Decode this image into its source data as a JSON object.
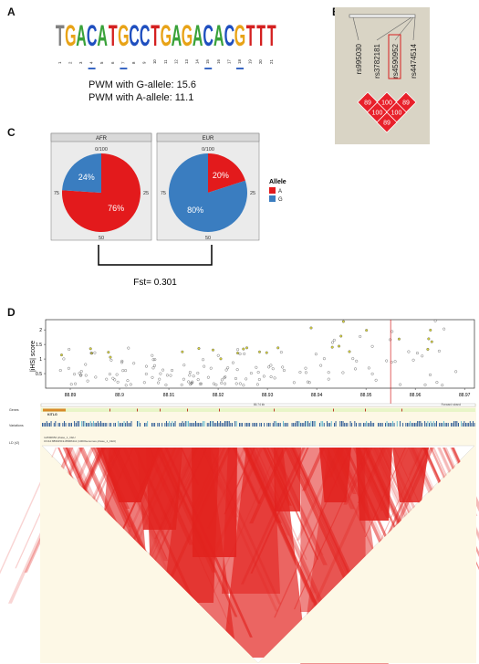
{
  "panels": {
    "a": {
      "letter": "A",
      "motif": [
        {
          "pos": "1",
          "letter": "T",
          "color": "#808080"
        },
        {
          "pos": "2",
          "letter": "G",
          "color": "#e8a317"
        },
        {
          "pos": "3",
          "letter": "A",
          "color": "#3aa23a"
        },
        {
          "pos": "4",
          "letter": "C",
          "color": "#1f4fbf"
        },
        {
          "pos": "5",
          "letter": "A",
          "color": "#3aa23a"
        },
        {
          "pos": "6",
          "letter": "T",
          "color": "#d42020"
        },
        {
          "pos": "7",
          "letter": "G",
          "color": "#e8a317"
        },
        {
          "pos": "8",
          "letter": "C",
          "color": "#1f4fbf"
        },
        {
          "pos": "9",
          "letter": "C",
          "color": "#1f4fbf"
        },
        {
          "pos": "10",
          "letter": "T",
          "color": "#d42020"
        },
        {
          "pos": "11",
          "letter": "G",
          "color": "#e8a317"
        },
        {
          "pos": "12",
          "letter": "A",
          "color": "#3aa23a"
        },
        {
          "pos": "13",
          "letter": "G",
          "color": "#e8a317"
        },
        {
          "pos": "14",
          "letter": "A",
          "color": "#3aa23a"
        },
        {
          "pos": "15",
          "letter": "C",
          "color": "#1f4fbf"
        },
        {
          "pos": "16",
          "letter": "A",
          "color": "#3aa23a"
        },
        {
          "pos": "17",
          "letter": "C",
          "color": "#1f4fbf"
        },
        {
          "pos": "18",
          "letter": "G",
          "color": "#e8a317"
        },
        {
          "pos": "19",
          "letter": "T",
          "color": "#d42020"
        },
        {
          "pos": "20",
          "letter": "T",
          "color": "#d42020"
        },
        {
          "pos": "21",
          "letter": "T",
          "color": "#d42020"
        }
      ],
      "underlined_positions": [
        "4",
        "7",
        "15",
        "18"
      ],
      "pwm_g": "PWM with G-allele: 15.6",
      "pwm_a": "PWM with A-allele: 11.1"
    },
    "b": {
      "letter": "B",
      "snps": [
        "rs995030",
        "rs3782181",
        "rs4590952",
        "rs4474514"
      ],
      "highlighted_snp": "rs4590952",
      "ld_values": [
        "89",
        "100",
        "89",
        "100",
        "100",
        "89"
      ]
    },
    "c": {
      "letter": "C",
      "allele_legend_title": "Allele",
      "fst": "Fst= 0.301",
      "chart_data": {
        "type": "pie",
        "facets": [
          {
            "name": "AFR",
            "slices": [
              {
                "allele": "A",
                "percent": 76
              },
              {
                "allele": "G",
                "percent": 24
              }
            ]
          },
          {
            "name": "EUR",
            "slices": [
              {
                "allele": "A",
                "percent": 20
              },
              {
                "allele": "G",
                "percent": 80
              }
            ]
          }
        ],
        "ring_ticks": [
          "0/100",
          "25",
          "50",
          "75"
        ],
        "legend": [
          {
            "label": "A",
            "color": "#e31a1c"
          },
          {
            "label": "G",
            "color": "#3a7dc0"
          }
        ],
        "slice_labels": {
          "AFR": [
            "76%",
            "24%"
          ],
          "EUR": [
            "20%",
            "80%"
          ]
        }
      }
    },
    "d": {
      "letter": "D",
      "ylabel": "|iHS| score",
      "chart_data": {
        "type": "scatter",
        "x_ticks": [
          "88.89",
          "88.9",
          "88.91",
          "88.92",
          "88.93",
          "88.94",
          "88.95",
          "88.96",
          "88.97"
        ],
        "y_ticks": [
          "0.5",
          "1",
          "1.5",
          "2"
        ],
        "xlim": [
          88.885,
          88.972
        ],
        "ylim": [
          0,
          2.35
        ],
        "highlight_x": 88.955
      },
      "tracks": {
        "genes_label": "Genes",
        "gene_name": "KITLG",
        "variations_label": "Variations",
        "ld_label": "LD (r2)",
        "scale_label": "86.74 kb",
        "strand_label": "Forward strand",
        "ld_caption_1": "rs4590952 phase_1_CEU",
        "ld_caption_2": "Chr12:88964519-88966111 (1000Genomes phase_1_CEU)"
      }
    }
  }
}
